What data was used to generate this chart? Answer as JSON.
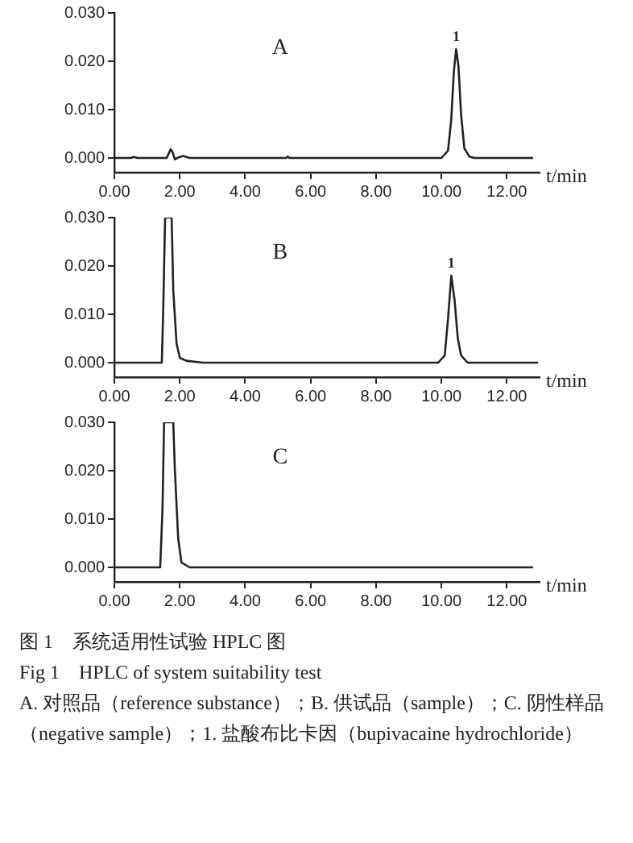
{
  "chart_data": [
    {
      "type": "line",
      "xlabel": "t/min",
      "annotations": [
        "A",
        {
          "text": "1",
          "x": 10.45,
          "y": 0.0225
        }
      ],
      "xlim": [
        0,
        13
      ],
      "ylim": [
        -0.003,
        0.03
      ],
      "xticks": [
        {
          "value": 0,
          "label": "0.00"
        },
        {
          "value": 2,
          "label": "2.00"
        },
        {
          "value": 4,
          "label": "4.00"
        },
        {
          "value": 6,
          "label": "6.00"
        },
        {
          "value": 8,
          "label": "8.00"
        },
        {
          "value": 10,
          "label": "10.00"
        },
        {
          "value": 12,
          "label": "12.00"
        }
      ],
      "yticks": [
        {
          "value": 0,
          "label": "0.000"
        },
        {
          "value": 0.01,
          "label": "0.010"
        },
        {
          "value": 0.02,
          "label": "0.020"
        },
        {
          "value": 0.03,
          "label": "0.030"
        }
      ],
      "grid": false,
      "legend": false,
      "marker": "none",
      "line_style": "solid",
      "series": [
        {
          "color": "#222222",
          "x": [
            0,
            0.5,
            0.6,
            0.7,
            1.6,
            1.72,
            1.78,
            1.85,
            1.95,
            2.1,
            2.3,
            5.25,
            5.3,
            5.35,
            10.0,
            10.2,
            10.3,
            10.38,
            10.45,
            10.52,
            10.6,
            10.7,
            10.85,
            11.0,
            12.8
          ],
          "values": [
            0,
            0,
            0.0002,
            0,
            0,
            0.0018,
            0.0012,
            -0.0003,
            0.0001,
            0.0004,
            0,
            0,
            0.0003,
            0,
            0,
            0.0015,
            0.008,
            0.018,
            0.0225,
            0.019,
            0.009,
            0.002,
            0.0003,
            0,
            0
          ]
        }
      ]
    },
    {
      "type": "line",
      "xlabel": "t/min",
      "annotations": [
        "B",
        {
          "text": "1",
          "x": 10.3,
          "y": 0.018
        }
      ],
      "xlim": [
        0,
        13
      ],
      "ylim": [
        -0.003,
        0.03
      ],
      "xticks": [
        {
          "value": 0,
          "label": "0.00"
        },
        {
          "value": 2,
          "label": "2.00"
        },
        {
          "value": 4,
          "label": "4.00"
        },
        {
          "value": 6,
          "label": "6.00"
        },
        {
          "value": 8,
          "label": "8.00"
        },
        {
          "value": 10,
          "label": "10.00"
        },
        {
          "value": 12,
          "label": "12.00"
        }
      ],
      "yticks": [
        {
          "value": 0,
          "label": "0.000"
        },
        {
          "value": 0.01,
          "label": "0.010"
        },
        {
          "value": 0.02,
          "label": "0.020"
        },
        {
          "value": 0.03,
          "label": "0.030"
        }
      ],
      "grid": false,
      "legend": false,
      "marker": "none",
      "line_style": "solid",
      "series": [
        {
          "color": "#222222",
          "x": [
            0,
            1.45,
            1.5,
            1.55,
            1.75,
            1.8,
            1.9,
            2.0,
            2.2,
            2.7,
            9.9,
            10.1,
            10.2,
            10.3,
            10.4,
            10.5,
            10.6,
            10.8,
            12.95
          ],
          "values": [
            0,
            0,
            0.013,
            0.03,
            0.03,
            0.015,
            0.004,
            0.001,
            0.0004,
            0,
            0,
            0.0015,
            0.009,
            0.018,
            0.013,
            0.005,
            0.0015,
            0,
            0
          ]
        }
      ]
    },
    {
      "type": "line",
      "xlabel": "t/min",
      "annotations": [
        "C"
      ],
      "xlim": [
        0,
        13
      ],
      "ylim": [
        -0.003,
        0.03
      ],
      "xticks": [
        {
          "value": 0,
          "label": "0.00"
        },
        {
          "value": 2,
          "label": "2.00"
        },
        {
          "value": 4,
          "label": "4.00"
        },
        {
          "value": 6,
          "label": "6.00"
        },
        {
          "value": 8,
          "label": "8.00"
        },
        {
          "value": 10,
          "label": "10.00"
        },
        {
          "value": 12,
          "label": "12.00"
        }
      ],
      "yticks": [
        {
          "value": 0,
          "label": "0.000"
        },
        {
          "value": 0.01,
          "label": "0.010"
        },
        {
          "value": 0.02,
          "label": "0.020"
        },
        {
          "value": 0.03,
          "label": "0.030"
        }
      ],
      "grid": false,
      "legend": false,
      "marker": "none",
      "line_style": "solid",
      "series": [
        {
          "color": "#222222",
          "x": [
            0,
            1.4,
            1.47,
            1.52,
            1.8,
            1.85,
            1.95,
            2.05,
            2.3,
            12.8
          ],
          "values": [
            0,
            0,
            0.012,
            0.03,
            0.03,
            0.02,
            0.006,
            0.001,
            0,
            0
          ]
        }
      ]
    },
    {
      "type": "other",
      "annotations": [
        "图 1　系统适用性试验 HPLC 图",
        "Fig 1　HPLC of system suitability test",
        "A. 对照品（reference substance）；B. 供试品（sample）；C. 阴性样品（negative sample）；1. 盐酸布比卡因（bupivacaine hydrochloride）"
      ]
    }
  ]
}
